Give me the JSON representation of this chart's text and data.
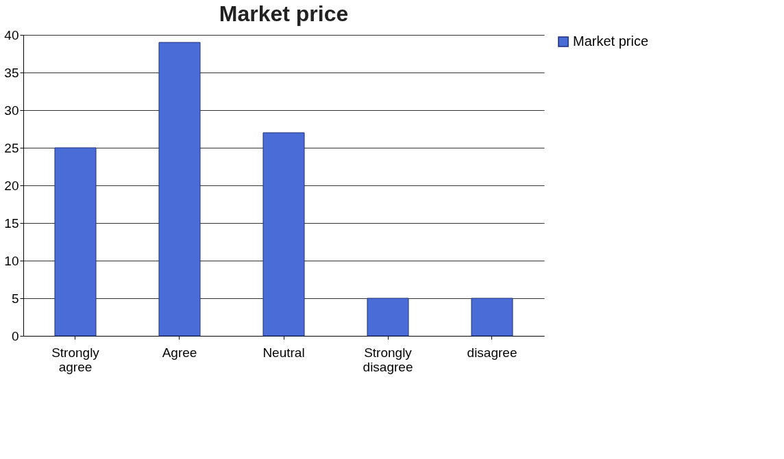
{
  "chart_data": {
    "type": "bar",
    "title": "Market price",
    "categories": [
      "Strongly agree",
      "Agree",
      "Neutral",
      "Strongly disagree",
      "disagree"
    ],
    "series": [
      {
        "name": "Market price",
        "color": "#4a6cd6",
        "values": [
          25,
          39,
          27,
          5,
          5
        ]
      }
    ],
    "ylim": [
      0,
      40
    ],
    "yticks": [
      0,
      5,
      10,
      15,
      20,
      25,
      30,
      35,
      40
    ],
    "grid": "y",
    "legend": "right"
  }
}
